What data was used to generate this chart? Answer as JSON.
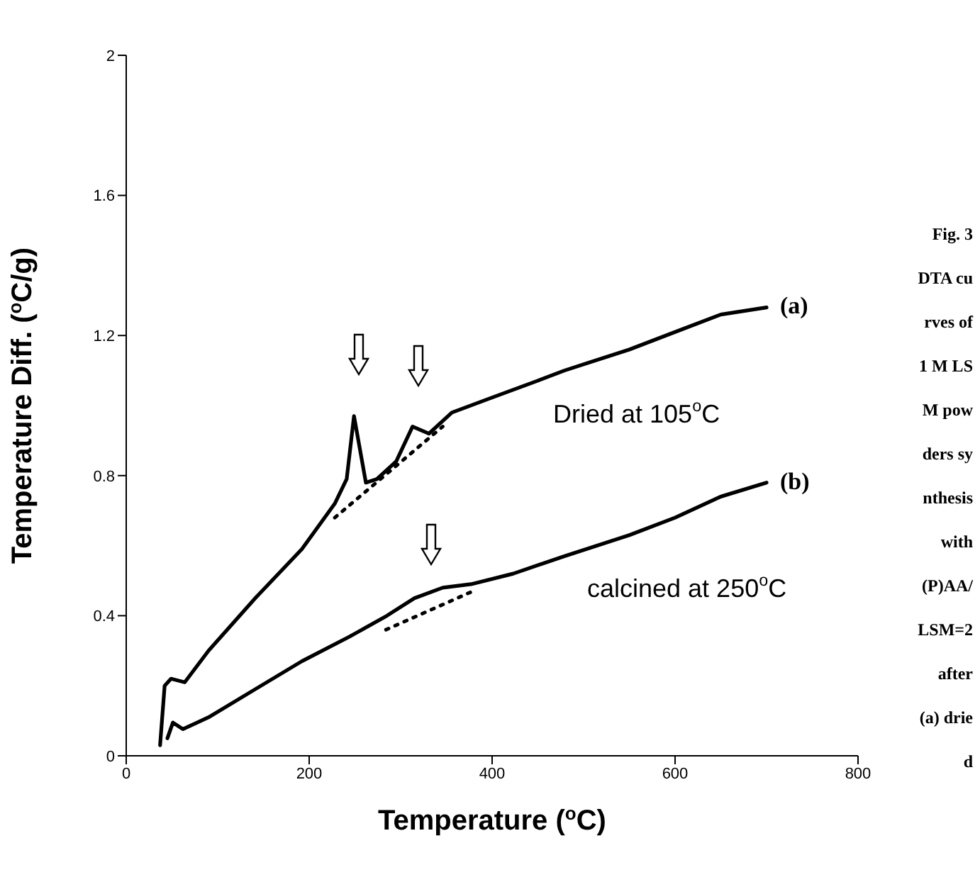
{
  "chart_data": {
    "type": "line",
    "xlabel": "Temperature ($^{o}$C)",
    "ylabel": "Temperature Diff. ($^{o}$C/g)",
    "xlim": [
      0,
      800
    ],
    "xticks": [
      0,
      200,
      400,
      600,
      800
    ],
    "ylim": [
      0,
      2
    ],
    "yticks": [
      0,
      0.4,
      0.8,
      1.2,
      1.6,
      2
    ],
    "marker": "none",
    "series": [
      {
        "color": "#000000",
        "line_style": "solid",
        "x": [
          37,
          42,
          49,
          64,
          90,
          141,
          192,
          228,
          241,
          249,
          262,
          274,
          295,
          313,
          331,
          356,
          397,
          449,
          479,
          550,
          600,
          650,
          700
        ],
        "values": [
          0.03,
          0.2,
          0.22,
          0.21,
          0.3,
          0.45,
          0.59,
          0.72,
          0.79,
          0.97,
          0.78,
          0.79,
          0.84,
          0.94,
          0.92,
          0.98,
          1.02,
          1.07,
          1.1,
          1.16,
          1.21,
          1.26,
          1.28
        ]
      },
      {
        "color": "#000000",
        "line_style": "dotted",
        "x": [
          228,
          346
        ],
        "values": [
          0.68,
          0.94
        ]
      },
      {
        "color": "#000000",
        "line_style": "solid",
        "x": [
          45,
          51,
          62,
          90,
          141,
          192,
          244,
          285,
          315,
          346,
          377,
          423,
          479,
          550,
          600,
          650,
          700
        ],
        "values": [
          0.05,
          0.095,
          0.076,
          0.11,
          0.19,
          0.27,
          0.34,
          0.4,
          0.45,
          0.48,
          0.49,
          0.52,
          0.57,
          0.63,
          0.68,
          0.74,
          0.78
        ]
      },
      {
        "color": "#000000",
        "line_style": "dotted",
        "x": [
          284,
          379
        ],
        "values": [
          0.36,
          0.47
        ]
      }
    ],
    "annotations": [
      "(a)",
      "(b)",
      "Dried at 105$^{o}$C",
      "calcined at 250$^{o}$C",
      "Fig. 3 DTA curves of 1 M LSM powders synthesis with (P)AA/LSM=2 after (a) dried"
    ]
  }
}
